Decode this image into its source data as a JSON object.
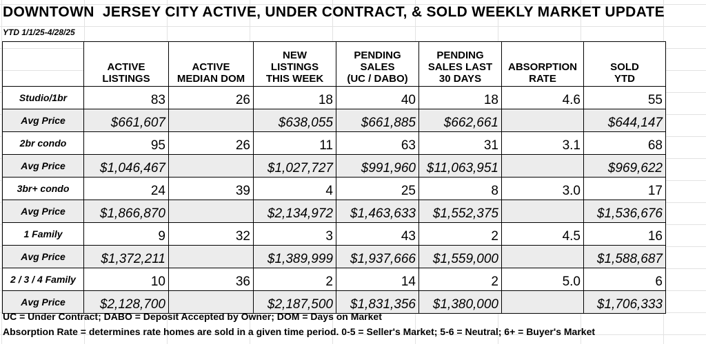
{
  "title": "DOWNTOWN  JERSEY CITY ACTIVE, UNDER CONTRACT, & SOLD WEEKLY MARKET UPDATE",
  "subtitle": "YTD 1/1/25-4/28/25",
  "headers": [
    "",
    "ACTIVE\nLISTINGS",
    "ACTIVE\nMEDIAN DOM",
    "NEW\nLISTINGS\nTHIS WEEK",
    "PENDING\nSALES\n(UC / DABO)",
    "PENDING\nSALES LAST\n30 DAYS",
    "ABSORPTION\nRATE",
    "SOLD\nYTD"
  ],
  "rows": [
    {
      "label": "Studio/1br",
      "kind": "count",
      "cells": [
        "83",
        "26",
        "18",
        "40",
        "18",
        "4.6",
        "55"
      ]
    },
    {
      "label": "Avg Price",
      "kind": "price",
      "cells": [
        "$661,607",
        "",
        "$638,055",
        "$661,885",
        "$662,661",
        "",
        "$644,147"
      ]
    },
    {
      "label": "2br condo",
      "kind": "count",
      "cells": [
        "95",
        "26",
        "11",
        "63",
        "31",
        "3.1",
        "68"
      ]
    },
    {
      "label": "Avg Price",
      "kind": "price",
      "cells": [
        "$1,046,467",
        "",
        "$1,027,727",
        "$991,960",
        "$11,063,951",
        "",
        "$969,622"
      ]
    },
    {
      "label": "3br+ condo",
      "kind": "count",
      "cells": [
        "24",
        "39",
        "4",
        "25",
        "8",
        "3.0",
        "17"
      ]
    },
    {
      "label": "Avg Price",
      "kind": "price",
      "cells": [
        "$1,866,870",
        "",
        "$2,134,972",
        "$1,463,633",
        "$1,552,375",
        "",
        "$1,536,676"
      ]
    },
    {
      "label": "1 Family",
      "kind": "count",
      "cells": [
        "9",
        "32",
        "3",
        "43",
        "2",
        "4.5",
        "16"
      ]
    },
    {
      "label": "Avg Price",
      "kind": "price",
      "cells": [
        "$1,372,211",
        "",
        "$1,389,999",
        "$1,937,666",
        "$1,559,000",
        "",
        "$1,588,687"
      ]
    },
    {
      "label": "2 / 3 / 4 Family",
      "kind": "count",
      "cells": [
        "10",
        "36",
        "2",
        "14",
        "2",
        "5.0",
        "6"
      ]
    },
    {
      "label": "Avg Price",
      "kind": "price",
      "cells": [
        "$2,128,700",
        "",
        "$2,187,500",
        "$1,831,356",
        "$1,380,000",
        "",
        "$1,706,333"
      ]
    }
  ],
  "notes": {
    "line1": "UC = Under Contract; DABO = Deposit Accepted by Owner; DOM = Days on Market",
    "line2": "Absorption Rate = determines rate homes are sold in a given time period.  0-5 = Seller's Market; 5-6 = Neutral; 6+ = Buyer's Market"
  },
  "colors": {
    "price_row_bg": "#ececec",
    "grid_line": "#e2e2e2",
    "border": "#000000"
  }
}
